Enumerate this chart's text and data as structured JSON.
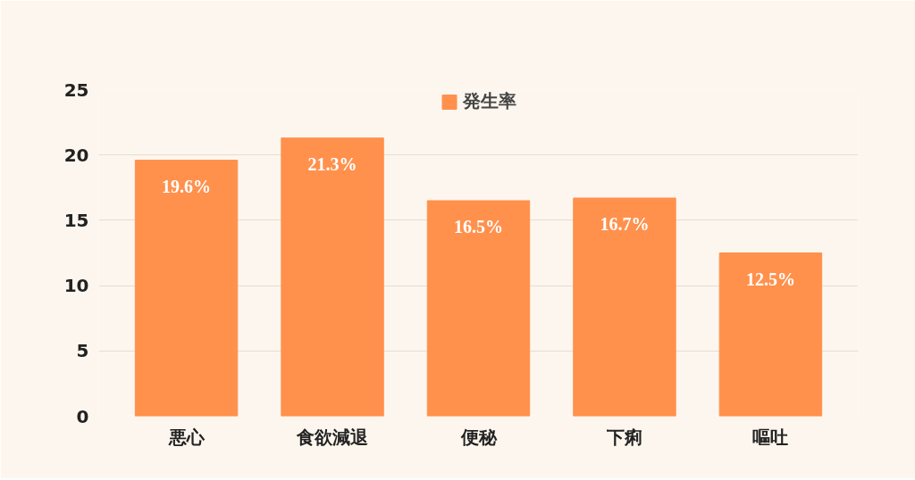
{
  "chart_data": {
    "type": "bar",
    "categories": [
      "悪心",
      "食欲減退",
      "便秘",
      "下痢",
      "嘔吐"
    ],
    "series": [
      {
        "name": "発生率",
        "color": "#ff914d",
        "values": [
          19.6,
          21.3,
          16.5,
          16.7,
          12.5
        ],
        "value_labels": [
          "19.6%",
          "21.3%",
          "16.5%",
          "16.7%",
          "12.5%"
        ]
      }
    ],
    "ylim": [
      0,
      25
    ],
    "yticks": [
      0,
      5,
      10,
      15,
      20,
      25
    ],
    "grid": "y",
    "legend": "top"
  }
}
